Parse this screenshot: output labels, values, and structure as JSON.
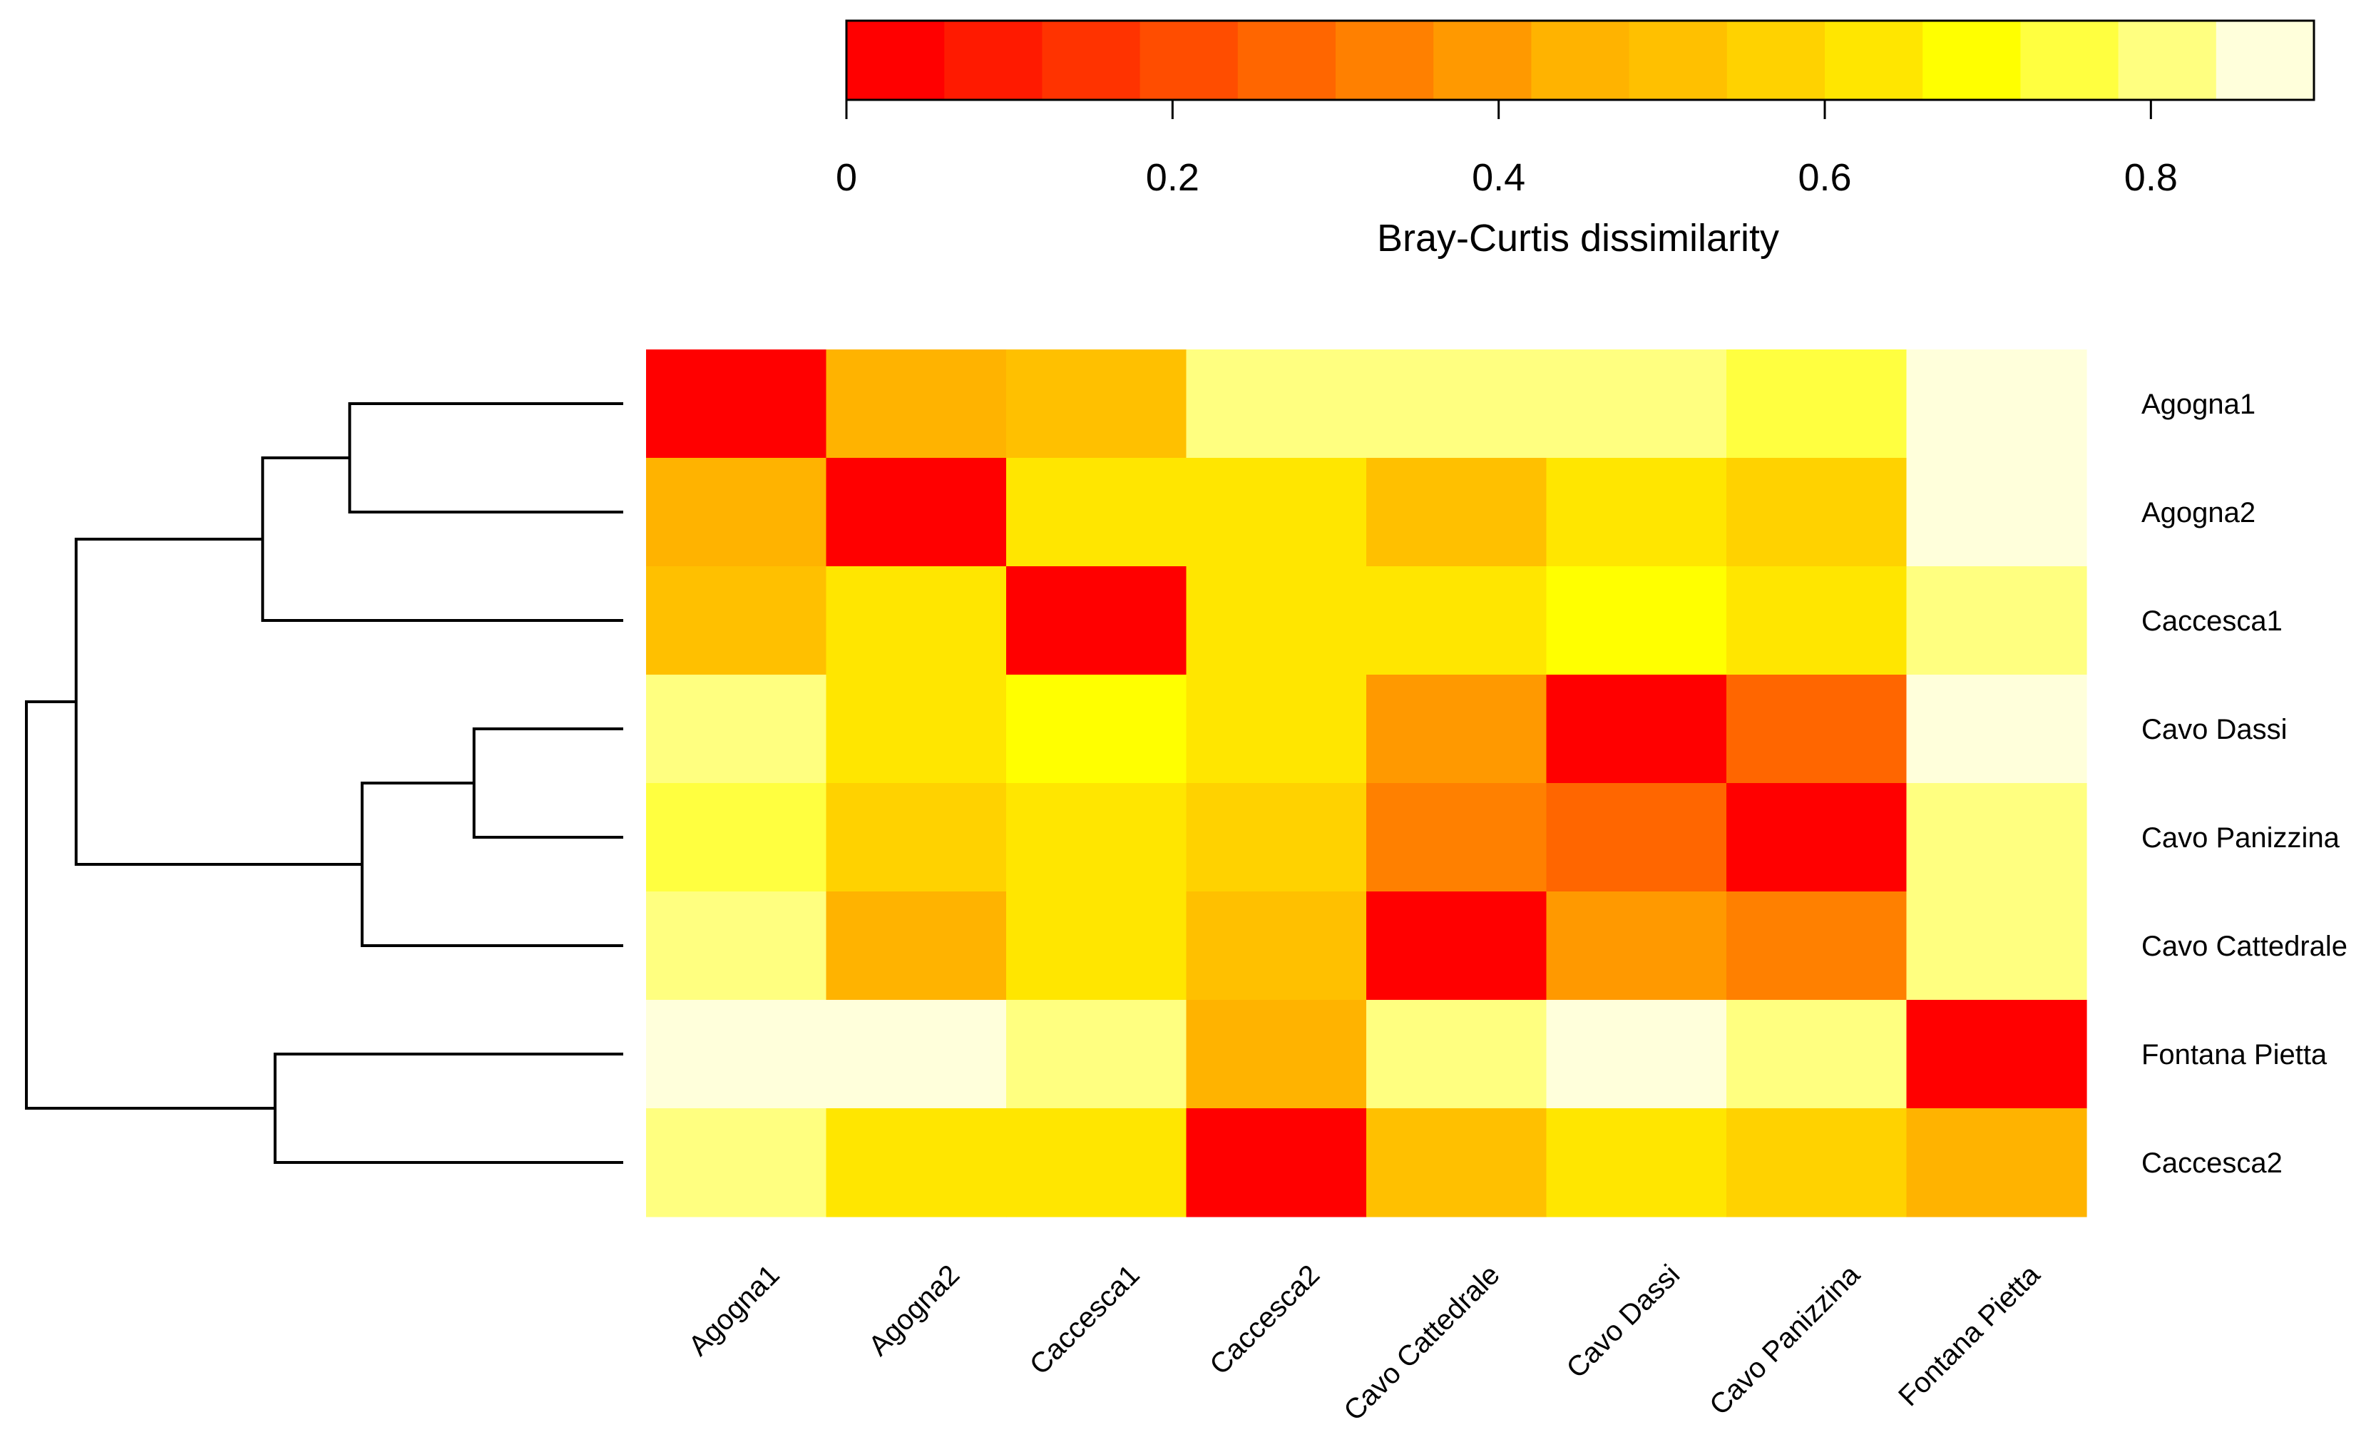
{
  "chart_data": {
    "type": "heatmap",
    "title": "",
    "row_labels": [
      "Agogna1",
      "Agogna2",
      "Caccesca1",
      "Cavo Dassi",
      "Cavo Panizzina",
      "Cavo Cattedrale",
      "Fontana Pietta",
      "Caccesca2"
    ],
    "col_labels": [
      "Agogna1",
      "Agogna2",
      "Caccesca1",
      "Caccesca2",
      "Cavo Cattedrale",
      "Cavo Dassi",
      "Cavo Panizzina",
      "Fontana Pietta"
    ],
    "values": [
      [
        0.0,
        0.44,
        0.52,
        0.82,
        0.82,
        0.82,
        0.76,
        0.88
      ],
      [
        0.44,
        0.0,
        0.64,
        0.64,
        0.5,
        0.62,
        0.56,
        0.88
      ],
      [
        0.52,
        0.64,
        0.0,
        0.64,
        0.64,
        0.7,
        0.64,
        0.8
      ],
      [
        0.82,
        0.64,
        0.7,
        0.64,
        0.42,
        0.0,
        0.24,
        0.88
      ],
      [
        0.76,
        0.56,
        0.64,
        0.56,
        0.32,
        0.24,
        0.0,
        0.8
      ],
      [
        0.82,
        0.46,
        0.64,
        0.48,
        0.0,
        0.42,
        0.34,
        0.8
      ],
      [
        0.88,
        0.88,
        0.8,
        0.44,
        0.8,
        0.88,
        0.8,
        0.0
      ],
      [
        0.8,
        0.64,
        0.64,
        0.0,
        0.5,
        0.62,
        0.56,
        0.44
      ]
    ],
    "colorbar": {
      "label": "Bray-Curtis dissimilarity",
      "min": 0,
      "max": 0.9,
      "ticks": [
        0,
        0.2,
        0.4,
        0.6,
        0.8
      ],
      "tick_labels": [
        "0",
        "0.2",
        "0.4",
        "0.6",
        "0.8"
      ],
      "colors": [
        "#ff0000",
        "#ff1a00",
        "#ff3300",
        "#ff4d00",
        "#ff6600",
        "#ff8000",
        "#ff9900",
        "#ffb300",
        "#ffc000",
        "#ffd200",
        "#ffe600",
        "#ffff00",
        "#ffff40",
        "#ffff80",
        "#ffffdb"
      ]
    },
    "row_dendrogram": {
      "leaves": [
        "Agogna1",
        "Agogna2",
        "Caccesca1",
        "Cavo Dassi",
        "Cavo Panizzina",
        "Cavo Cattedrale",
        "Fontana Pietta",
        "Caccesca2"
      ],
      "merges": [
        {
          "a": "Agogna1",
          "b": "Agogna2",
          "height": 0.44
        },
        {
          "a": "Cavo Dassi",
          "b": "Cavo Panizzina",
          "height": 0.24
        },
        {
          "a": "Fontana Pietta",
          "b": "Caccesca2",
          "height": 0.56
        },
        {
          "a": "Agogna1+Agogna2",
          "b": "Caccesca1",
          "height": 0.58
        },
        {
          "a": "Cavo Dassi+Cavo Panizzina",
          "b": "Cavo Cattedrale",
          "height": 0.42
        },
        {
          "a": "Agogna1+Agogna2+Caccesca1",
          "b": "Cavo Dassi+Cavo Panizzina+Cavo Cattedrale",
          "height": 0.88
        },
        {
          "a": "all-upper",
          "b": "Fontana Pietta+Caccesca2",
          "height": 0.96
        }
      ]
    }
  }
}
